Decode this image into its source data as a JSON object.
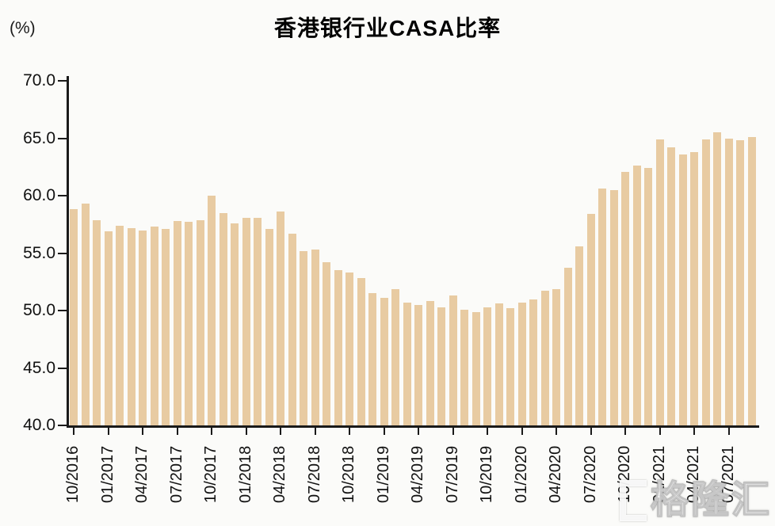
{
  "figure": {
    "title": "香港银行业CASA比率",
    "unit_label": "(%)"
  },
  "watermark": {
    "text": "格隆汇",
    "icon": "bracket-icon"
  },
  "chart_data": {
    "type": "bar",
    "title": "香港银行业CASA比率",
    "xlabel": "",
    "ylabel": "(%)",
    "ylim": [
      40.0,
      70.0
    ],
    "yticks": [
      "40.0",
      "45.0",
      "50.0",
      "55.0",
      "60.0",
      "65.0",
      "70.0"
    ],
    "xtick_every": 3,
    "grid": false,
    "legend": null,
    "bar_color": "#e8cba2",
    "axis_color": "#1a1a1a",
    "categories": [
      "10/2016",
      "11/2016",
      "12/2016",
      "01/2017",
      "02/2017",
      "03/2017",
      "04/2017",
      "05/2017",
      "06/2017",
      "07/2017",
      "08/2017",
      "09/2017",
      "10/2017",
      "11/2017",
      "12/2017",
      "01/2018",
      "02/2018",
      "03/2018",
      "04/2018",
      "05/2018",
      "06/2018",
      "07/2018",
      "08/2018",
      "09/2018",
      "10/2018",
      "11/2018",
      "12/2018",
      "01/2019",
      "02/2019",
      "03/2019",
      "04/2019",
      "05/2019",
      "06/2019",
      "07/2019",
      "08/2019",
      "09/2019",
      "10/2019",
      "11/2019",
      "12/2019",
      "01/2020",
      "02/2020",
      "03/2020",
      "04/2020",
      "05/2020",
      "06/2020",
      "07/2020",
      "08/2020",
      "09/2020",
      "10/2020",
      "11/2020",
      "12/2020",
      "01/2021",
      "02/2021",
      "03/2021",
      "04/2021",
      "05/2021",
      "06/2021",
      "07/2021",
      "08/2021",
      "09/2021"
    ],
    "values": [
      58.8,
      59.3,
      57.9,
      56.9,
      57.4,
      57.2,
      57.0,
      57.3,
      57.1,
      57.8,
      57.7,
      57.9,
      60.0,
      58.5,
      57.6,
      58.1,
      58.1,
      57.1,
      58.6,
      56.7,
      55.2,
      55.3,
      54.2,
      53.5,
      53.3,
      52.8,
      51.5,
      51.1,
      51.9,
      50.7,
      50.5,
      50.8,
      50.3,
      51.3,
      50.1,
      49.9,
      50.3,
      50.6,
      50.2,
      50.7,
      51.0,
      51.7,
      51.9,
      53.7,
      55.6,
      58.4,
      60.6,
      60.5,
      62.1,
      62.6,
      62.4,
      64.9,
      64.2,
      63.6,
      63.8,
      64.9,
      65.5,
      65.0,
      64.8,
      65.1
    ]
  }
}
